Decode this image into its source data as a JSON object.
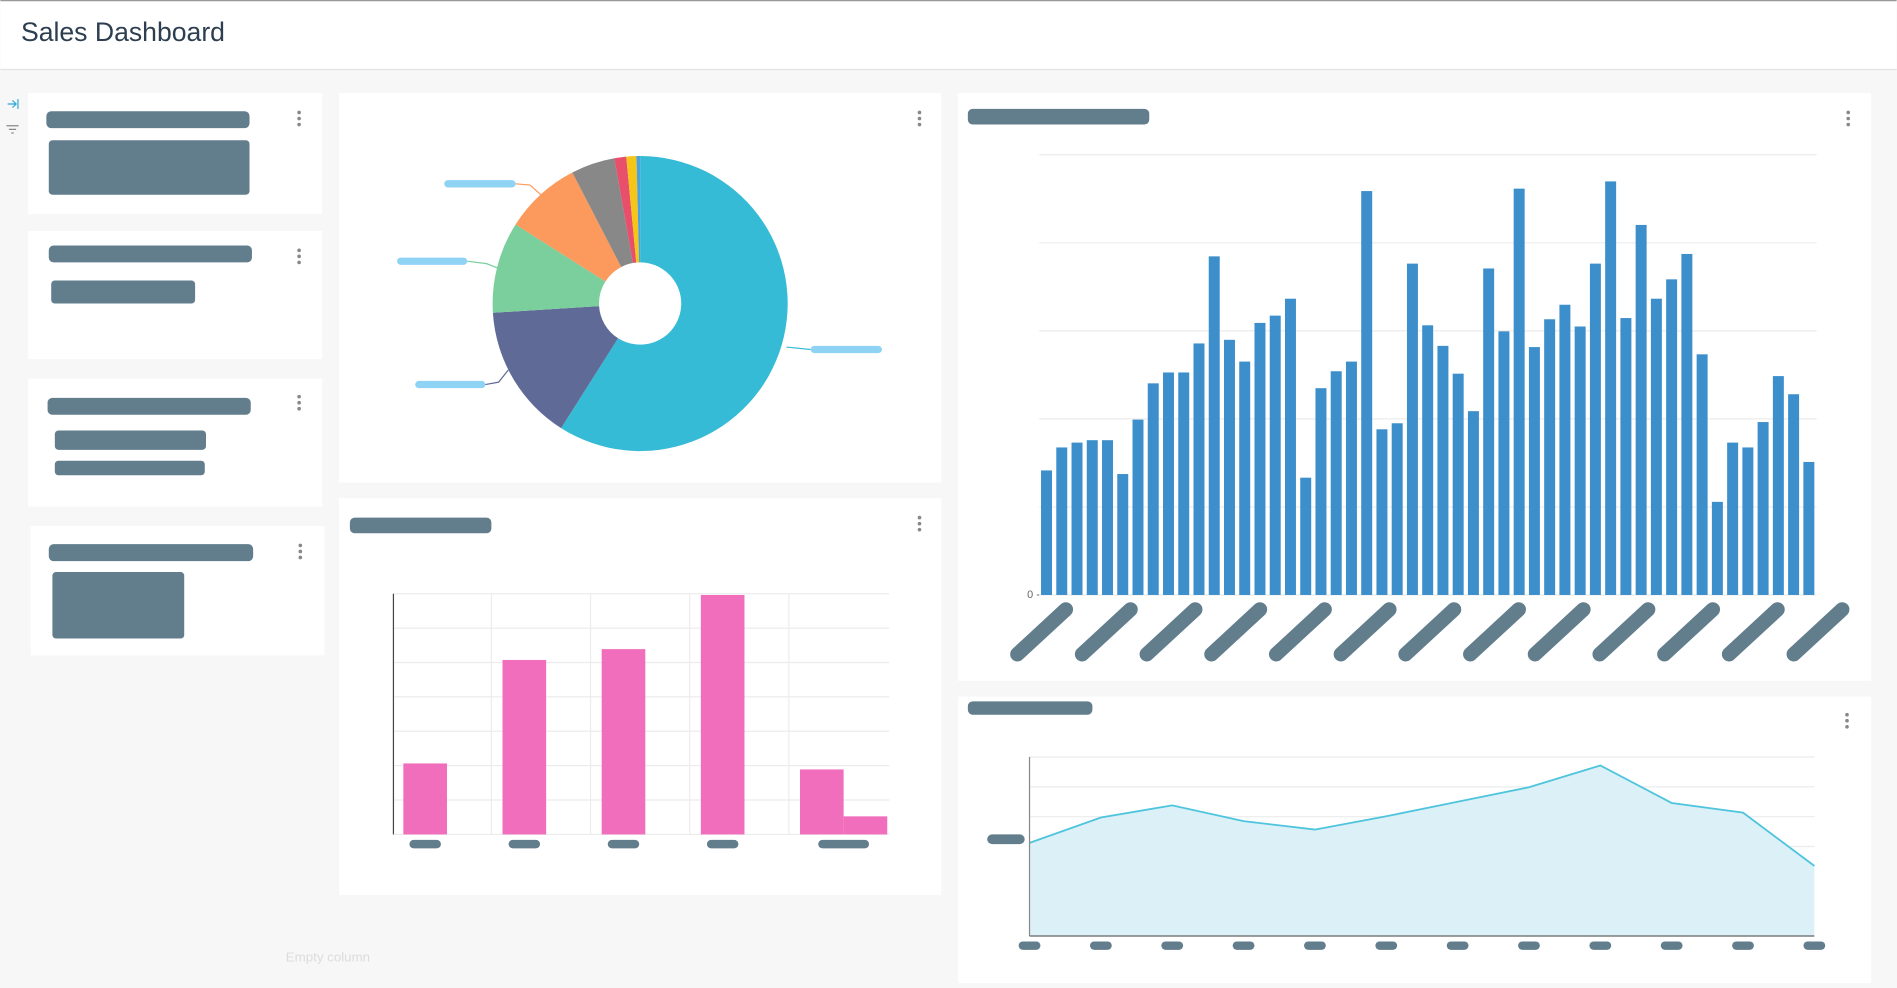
{
  "header": {
    "title": "Sales Dashboard"
  },
  "placeholder": "Empty column",
  "chart_data": [
    {
      "type": "pie",
      "values": [
        59,
        15,
        10,
        8.4,
        4.8,
        1.3,
        1.1,
        0.4
      ],
      "colors": [
        "#36bbd6",
        "#5f6a96",
        "#7acf9d",
        "#fb9a5c",
        "#888888",
        "#e84f6b",
        "#f5c518",
        "#4aa3df"
      ]
    },
    {
      "type": "bar",
      "categories": [
        null,
        null,
        null,
        null,
        null
      ],
      "series": [
        {
          "color": "#f066b8",
          "values": [
            59,
            145,
            154,
            199,
            54
          ]
        },
        {
          "color": "#f066b8",
          "values": [
            null,
            null,
            null,
            null,
            15
          ]
        }
      ],
      "ylim": [
        0,
        200
      ]
    },
    {
      "type": "bar",
      "color": "#3d8fcb",
      "values": [
        103,
        122,
        126,
        128,
        128,
        100,
        145,
        175,
        184,
        184,
        208,
        280,
        211,
        193,
        225,
        231,
        245,
        97,
        171,
        185,
        193,
        334,
        137,
        142,
        274,
        223,
        206,
        183,
        152,
        270,
        218,
        336,
        205,
        228,
        240,
        222,
        274,
        342,
        229,
        306,
        245,
        261,
        282,
        199,
        77,
        126,
        122,
        143,
        181,
        166,
        110
      ],
      "ylim": [
        0,
        364
      ],
      "yticks": [
        0
      ]
    },
    {
      "type": "area",
      "categories": [
        null,
        null,
        null,
        null,
        null,
        null,
        null,
        null,
        null,
        null,
        null,
        null
      ],
      "values": [
        77,
        98,
        108,
        95,
        88,
        99,
        111,
        123,
        141,
        110,
        102,
        58
      ],
      "color": "#4ec4dd",
      "fill": "#dcf0f7",
      "ylim": [
        0,
        148
      ]
    }
  ]
}
